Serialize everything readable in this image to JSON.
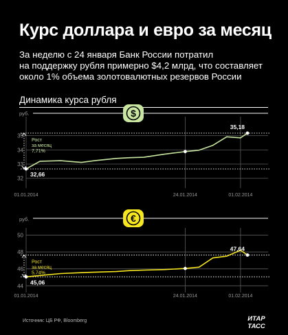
{
  "header": {
    "title": "Курс доллара и евро за месяц",
    "subtitle_lines": [
      "За неделю с 24 января Банк России потратил",
      "на поддержку рубля примерно $4,2 млрд, что составляет",
      "около 1% объема золотовалютных резервов России"
    ]
  },
  "section_title": "Динамика курса рубля",
  "source": "Источник: ЦБ РФ, Bloomberg",
  "logo": {
    "line1": "ИТАР",
    "line2": "ТАСС"
  },
  "colors": {
    "background": "#000000",
    "usd_line": "#c8e6a0",
    "usd_badge": "#c8e6a0",
    "eur_line": "#f5e61f",
    "eur_badge": "#f5e61f",
    "grid": "#5a5a5a",
    "text": "#ffffff",
    "muted": "#9a9a9a"
  },
  "chart_data": [
    {
      "type": "line",
      "currency_icon": "dollar-icon",
      "currency_symbol": "$",
      "unit": "руб.",
      "x": [
        "01.01.2014",
        "03.01.2014",
        "06.01.2014",
        "09.01.2014",
        "11.01.2014",
        "14.01.2014",
        "16.01.2014",
        "18.01.2014",
        "21.01.2014",
        "24.01.2014",
        "26.01.2014",
        "28.01.2014",
        "30.01.2014",
        "01.02.2014",
        "02.02.2014"
      ],
      "y": [
        32.66,
        33.2,
        33.24,
        33.12,
        33.25,
        33.4,
        33.45,
        33.48,
        33.7,
        33.88,
        33.98,
        34.32,
        34.92,
        34.85,
        35.18
      ],
      "xticks": [
        "01.01.2014",
        "24.01.2014",
        "01.02.2014"
      ],
      "yticks": [
        32,
        33,
        34,
        35
      ],
      "ylim": [
        31.6,
        35.95
      ],
      "start_label": "32,66",
      "end_label": "35,18",
      "growth_label": "Рост\nза месяц\n7,71%"
    },
    {
      "type": "line",
      "currency_icon": "euro-icon",
      "currency_symbol": "€",
      "unit": "руб.",
      "x": [
        "01.01.2014",
        "03.01.2014",
        "06.01.2014",
        "09.01.2014",
        "11.01.2014",
        "14.01.2014",
        "16.01.2014",
        "18.01.2014",
        "21.01.2014",
        "24.01.2014",
        "26.01.2014",
        "28.01.2014",
        "30.01.2014",
        "01.02.2014",
        "02.02.2014"
      ],
      "y": [
        45.06,
        45.22,
        45.45,
        45.55,
        45.62,
        45.68,
        45.8,
        45.85,
        45.92,
        46.05,
        46.2,
        47.3,
        47.5,
        48.2,
        47.64
      ],
      "xticks": [
        "01.01.2014",
        "24.01.2014",
        "01.02.2014"
      ],
      "yticks": [
        44,
        46,
        48,
        50
      ],
      "ylim": [
        43.7,
        50.2
      ],
      "start_label": "45,06",
      "end_label": "47,64",
      "growth_label": "Рост\nза месяц\n5,74%"
    }
  ]
}
